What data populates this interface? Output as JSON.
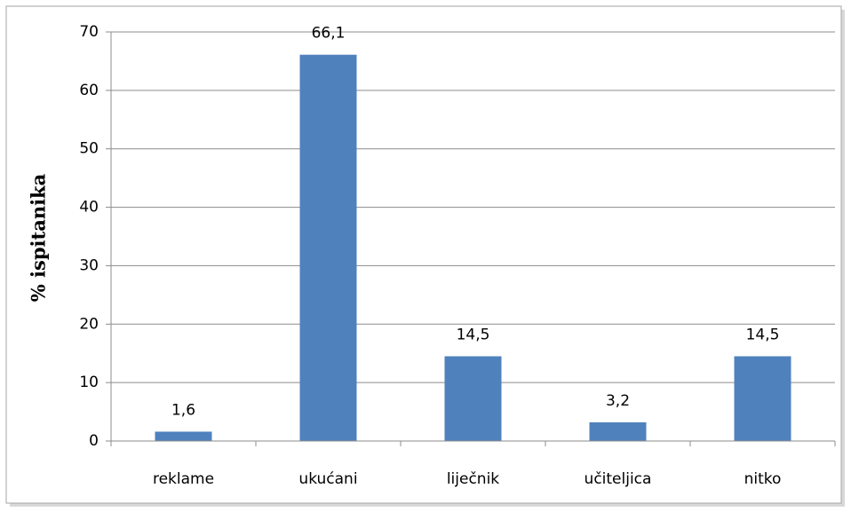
{
  "chart_data": {
    "type": "bar",
    "y_label": "% ispitanika",
    "categories": [
      "reklame",
      "ukućani",
      "liječnik",
      "učiteljica",
      "nitko"
    ],
    "values": [
      1.6,
      66.1,
      14.5,
      3.2,
      14.5
    ],
    "value_labels": [
      "1,6",
      "66,1",
      "14,5",
      "3,2",
      "14,5"
    ],
    "color": "#4f81bd",
    "ylim": [
      0,
      70
    ],
    "yticks": [
      0,
      10,
      20,
      30,
      40,
      50,
      60,
      70
    ],
    "grid": true
  }
}
